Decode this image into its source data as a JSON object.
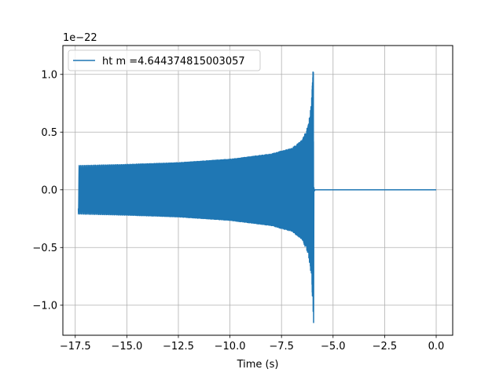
{
  "chart_data": {
    "type": "line",
    "title": "",
    "xlabel": "Time (s)",
    "ylabel": "",
    "offset_text": "1e−22",
    "xlim": [
      -18.1,
      0.8
    ],
    "ylim": [
      -1.26,
      1.25
    ],
    "x_ticks": [
      -17.5,
      -15.0,
      -12.5,
      -10.0,
      -7.5,
      -5.0,
      -2.5,
      0.0
    ],
    "x_tick_labels": [
      "−17.5",
      "−15.0",
      "−12.5",
      "−10.0",
      "−7.5",
      "−5.0",
      "−2.5",
      "0.0"
    ],
    "y_ticks": [
      -1.0,
      -0.5,
      0.0,
      0.5,
      1.0
    ],
    "y_tick_labels": [
      "−1.0",
      "−0.5",
      "0.0",
      "0.5",
      "1.0"
    ],
    "grid": true,
    "legend_position": "upper-left",
    "series": [
      {
        "name": "ht m =4.644374815003057",
        "color": "#1f77b4",
        "kind": "chirp",
        "t_start": -17.35,
        "t_merger": -5.95,
        "t_end": 0.0,
        "envelope": [
          [
            -17.35,
            0.21
          ],
          [
            -15.0,
            0.22
          ],
          [
            -12.5,
            0.235
          ],
          [
            -10.0,
            0.265
          ],
          [
            -8.0,
            0.31
          ],
          [
            -7.0,
            0.36
          ],
          [
            -6.5,
            0.43
          ],
          [
            -6.2,
            0.56
          ],
          [
            -6.05,
            0.75
          ],
          [
            -5.98,
            1.0
          ],
          [
            -5.95,
            1.13
          ]
        ],
        "min_peak": -1.15,
        "post_merger_value": 0.0
      }
    ]
  }
}
